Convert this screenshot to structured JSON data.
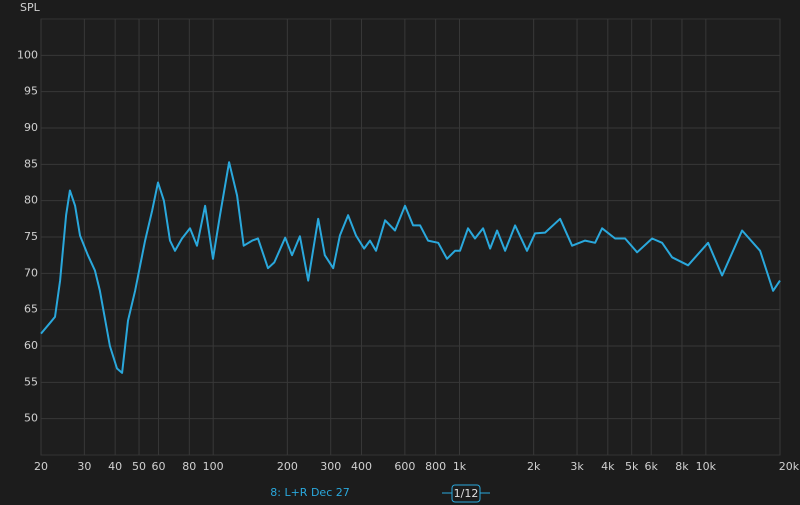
{
  "chart_data": {
    "type": "line",
    "y_label": "SPL",
    "x": [
      20,
      21.8,
      22.8,
      23.9,
      25.3,
      26.2,
      27.5,
      28.8,
      31.0,
      33.1,
      34.7,
      38.1,
      40.7,
      42.7,
      45.1,
      48.2,
      52.9,
      56.5,
      59.7,
      63.1,
      66.8,
      70.0,
      74.7,
      80.5,
      86.0,
      92.7,
      99.8,
      106.6,
      116,
      125,
      133,
      144,
      152,
      167,
      177,
      196,
      209,
      225,
      243,
      267,
      284,
      307,
      327,
      353,
      380,
      410,
      433,
      458,
      499,
      547,
      601,
      648,
      692,
      745,
      819,
      890,
      959,
      1005,
      1083,
      1156,
      1247,
      1331,
      1421,
      1531,
      1681,
      1880,
      2026,
      2225,
      2560,
      2864,
      3234,
      3551,
      3792,
      4281,
      4700,
      5257,
      6050,
      6642,
      7296,
      8470,
      10210,
      11642,
      14036,
      16606,
      18754,
      20000
    ],
    "series": [
      {
        "name": "8: L+R Dec 27",
        "color": "#2aa8dc",
        "values": [
          61.7,
          63.2,
          64,
          69,
          78,
          81.4,
          79.3,
          75.2,
          72.5,
          70.4,
          67.6,
          60,
          56.9,
          56.3,
          63.5,
          67.6,
          74.5,
          78.6,
          82.5,
          80,
          74.5,
          73.1,
          74.8,
          76.2,
          73.8,
          79.3,
          72,
          78,
          85.3,
          80.7,
          73.8,
          74.5,
          74.8,
          70.7,
          71.5,
          74.9,
          72.5,
          75.1,
          69,
          77.5,
          72.5,
          70.7,
          75.2,
          78,
          75.2,
          73.4,
          74.5,
          73.1,
          77.3,
          75.9,
          79.3,
          76.6,
          76.6,
          74.5,
          74.2,
          72,
          73.1,
          73.1,
          76.2,
          74.8,
          76.2,
          73.4,
          75.9,
          73.1,
          76.6,
          73.1,
          75.5,
          75.6,
          77.5,
          73.8,
          74.5,
          74.2,
          76.2,
          74.8,
          74.8,
          72.9,
          74.8,
          74.2,
          72.2,
          71.1,
          74.2,
          69.7,
          75.9,
          73.1,
          67.6,
          69
        ]
      }
    ],
    "smoothing": "1/12",
    "xlim": [
      20,
      20000
    ],
    "x_log": true,
    "xticks": [
      20,
      30,
      40,
      50,
      60,
      80,
      100,
      200,
      300,
      400,
      600,
      800,
      {
        "value": 1000,
        "label": "1k"
      },
      {
        "value": 2000,
        "label": "2k"
      },
      {
        "value": 3000,
        "label": "3k"
      },
      {
        "value": 4000,
        "label": "4k"
      },
      {
        "value": 5000,
        "label": "5k"
      },
      {
        "value": 6000,
        "label": "6k"
      },
      {
        "value": 8000,
        "label": "8k"
      },
      {
        "value": 10000,
        "label": "10k"
      },
      {
        "value": 20000,
        "label": "20kHz"
      }
    ],
    "ylim": [
      45,
      105
    ],
    "yticks": [
      50,
      55,
      60,
      65,
      70,
      75,
      80,
      85,
      90,
      95,
      100
    ],
    "grid": true
  }
}
